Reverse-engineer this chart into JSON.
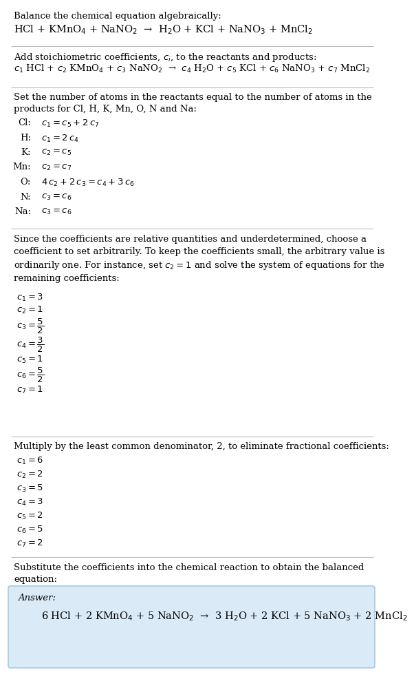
{
  "title_text": "Balance the chemical equation algebraically:",
  "eq1": "HCl + KMnO$_4$ + NaNO$_2$  →  H$_2$O + KCl + NaNO$_3$ + MnCl$_2$",
  "section2_title": "Add stoichiometric coefficients, $c_i$, to the reactants and products:",
  "eq2": "$c_1$ HCl + $c_2$ KMnO$_4$ + $c_3$ NaNO$_2$  →  $c_4$ H$_2$O + $c_5$ KCl + $c_6$ NaNO$_3$ + $c_7$ MnCl$_2$",
  "section3_title": "Set the number of atoms in the reactants equal to the number of atoms in the\nproducts for Cl, H, K, Mn, O, N and Na:",
  "atoms": [
    [
      "Cl:",
      "$c_1 = c_5 + 2\\,c_7$"
    ],
    [
      "H:",
      "$c_1 = 2\\,c_4$"
    ],
    [
      "K:",
      "$c_2 = c_5$"
    ],
    [
      "Mn:",
      "$c_2 = c_7$"
    ],
    [
      "O:",
      "$4\\,c_2 + 2\\,c_3 = c_4 + 3\\,c_6$"
    ],
    [
      "N:",
      "$c_3 = c_6$"
    ],
    [
      "Na:",
      "$c_3 = c_6$"
    ]
  ],
  "section4_title": "Since the coefficients are relative quantities and underdetermined, choose a\ncoefficient to set arbitrarily. To keep the coefficients small, the arbitrary value is\nordinarily one. For instance, set $c_2 = 1$ and solve the system of equations for the\nremaining coefficients:",
  "coeffs1": [
    "$c_1 = 3$",
    "$c_2 = 1$",
    "$c_3 = \\dfrac{5}{2}$",
    "$c_4 = \\dfrac{3}{2}$",
    "$c_5 = 1$",
    "$c_6 = \\dfrac{5}{2}$",
    "$c_7 = 1$"
  ],
  "section5_title": "Multiply by the least common denominator, 2, to eliminate fractional coefficients:",
  "coeffs2": [
    "$c_1 = 6$",
    "$c_2 = 2$",
    "$c_3 = 5$",
    "$c_4 = 3$",
    "$c_5 = 2$",
    "$c_6 = 5$",
    "$c_7 = 2$"
  ],
  "section6_title": "Substitute the coefficients into the chemical reaction to obtain the balanced\nequation:",
  "answer_label": "Answer:",
  "answer_eq": "6 HCl + 2 KMnO$_4$ + 5 NaNO$_2$  →  3 H$_2$O + 2 KCl + 5 NaNO$_3$ + 2 MnCl$_2$",
  "bg_color": "#ffffff",
  "answer_box_color": "#daeaf7",
  "text_color": "#000000",
  "separator_color": "#bbbbbb",
  "font_size": 9.5,
  "eq_font_size": 10.5
}
